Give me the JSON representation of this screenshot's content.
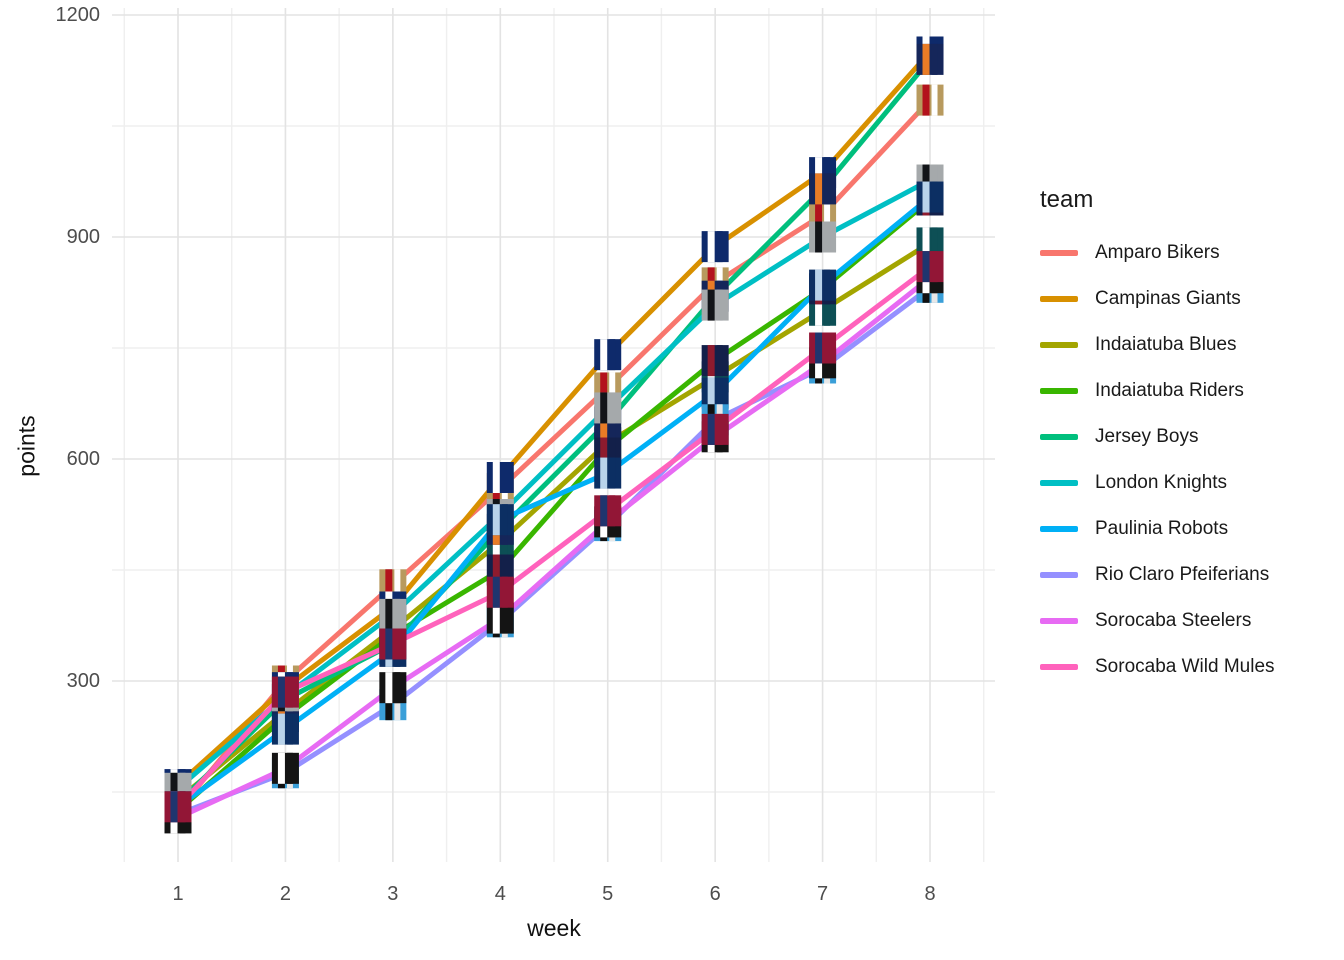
{
  "chart_data": {
    "type": "line",
    "title": "",
    "xlabel": "week",
    "ylabel": "points",
    "legend_title": "team",
    "legend_position": "right",
    "x": [
      1,
      2,
      3,
      4,
      5,
      6,
      7,
      8
    ],
    "x_tick_labels": [
      "1",
      "2",
      "3",
      "4",
      "5",
      "6",
      "7",
      "8"
    ],
    "y_ticks": [
      300,
      600,
      900,
      1200
    ],
    "y_minor_gridlines": [
      150,
      450,
      750,
      1050
    ],
    "xlim": [
      0.5,
      8.5
    ],
    "ylim": [
      50,
      1210
    ],
    "grid": "major and minor light-gray gridlines on white background, no axis lines, no tick marks",
    "point_marker": "team logo image at every data point",
    "gridline_major_color": "#e3e3e3",
    "gridline_minor_color": "#efefef",
    "series": [
      {
        "name": "Amparo Bikers",
        "color": "#F8766D",
        "logo_colors": [
          "#b89a5e",
          "#b3121c",
          "#ffffff"
        ],
        "values": [
          125,
          300,
          430,
          560,
          696,
          838,
          930,
          1085
        ]
      },
      {
        "name": "Campinas Giants",
        "color": "#D89000",
        "logo_colors": [
          "#0e2a6b",
          "#ffffff",
          "#0e2a6b"
        ],
        "values": [
          160,
          291,
          400,
          575,
          741,
          887,
          987,
          1150
        ]
      },
      {
        "name": "Indaiatuba Blues",
        "color": "#A3A500",
        "logo_colors": [
          "#0d4f55",
          "#ffffff",
          "#0d4f55"
        ],
        "values": [
          140,
          258,
          370,
          488,
          622,
          711,
          801,
          892
        ]
      },
      {
        "name": "Indaiatuba Riders",
        "color": "#39B600",
        "logo_colors": [
          "#13204a",
          "#8e1b2e",
          "#13204a"
        ],
        "values": [
          125,
          252,
          362,
          450,
          615,
          733,
          830,
          950
        ]
      },
      {
        "name": "Jersey Boys",
        "color": "#00BF7D",
        "logo_colors": [
          "#15265a",
          "#e97c26",
          "#15265a"
        ],
        "values": [
          135,
          275,
          350,
          505,
          650,
          820,
          965,
          1140
        ]
      },
      {
        "name": "London Knights",
        "color": "#00BFC4",
        "logo_colors": [
          "#a5a9ab",
          "#121418",
          "#a5a9ab"
        ],
        "values": [
          155,
          280,
          390,
          525,
          669,
          808,
          900,
          977
        ]
      },
      {
        "name": "Paulinia Robots",
        "color": "#00B0F6",
        "logo_colors": [
          "#0c2f63",
          "#b9d3ea",
          "#0c2f63"
        ],
        "values": [
          130,
          235,
          340,
          518,
          581,
          689,
          835,
          954
        ]
      },
      {
        "name": "Rio Claro Pfeiferians",
        "color": "#9590FF",
        "logo_colors": [
          "#3a9fd8",
          "#101010",
          "#e8e8e8"
        ],
        "values": [
          120,
          176,
          268,
          380,
          510,
          653,
          723,
          832
        ]
      },
      {
        "name": "Sorocaba Steelers",
        "color": "#E76BF3",
        "logo_colors": [
          "#141414",
          "#ffffff",
          "#141414"
        ],
        "values": [
          115,
          182,
          291,
          385,
          515,
          630,
          730,
          845
        ]
      },
      {
        "name": "Sorocaba Wild Mules",
        "color": "#FF62BC",
        "logo_colors": [
          "#921636",
          "#20356e",
          "#921636"
        ],
        "values": [
          130,
          285,
          350,
          420,
          530,
          640,
          750,
          860
        ]
      }
    ]
  }
}
